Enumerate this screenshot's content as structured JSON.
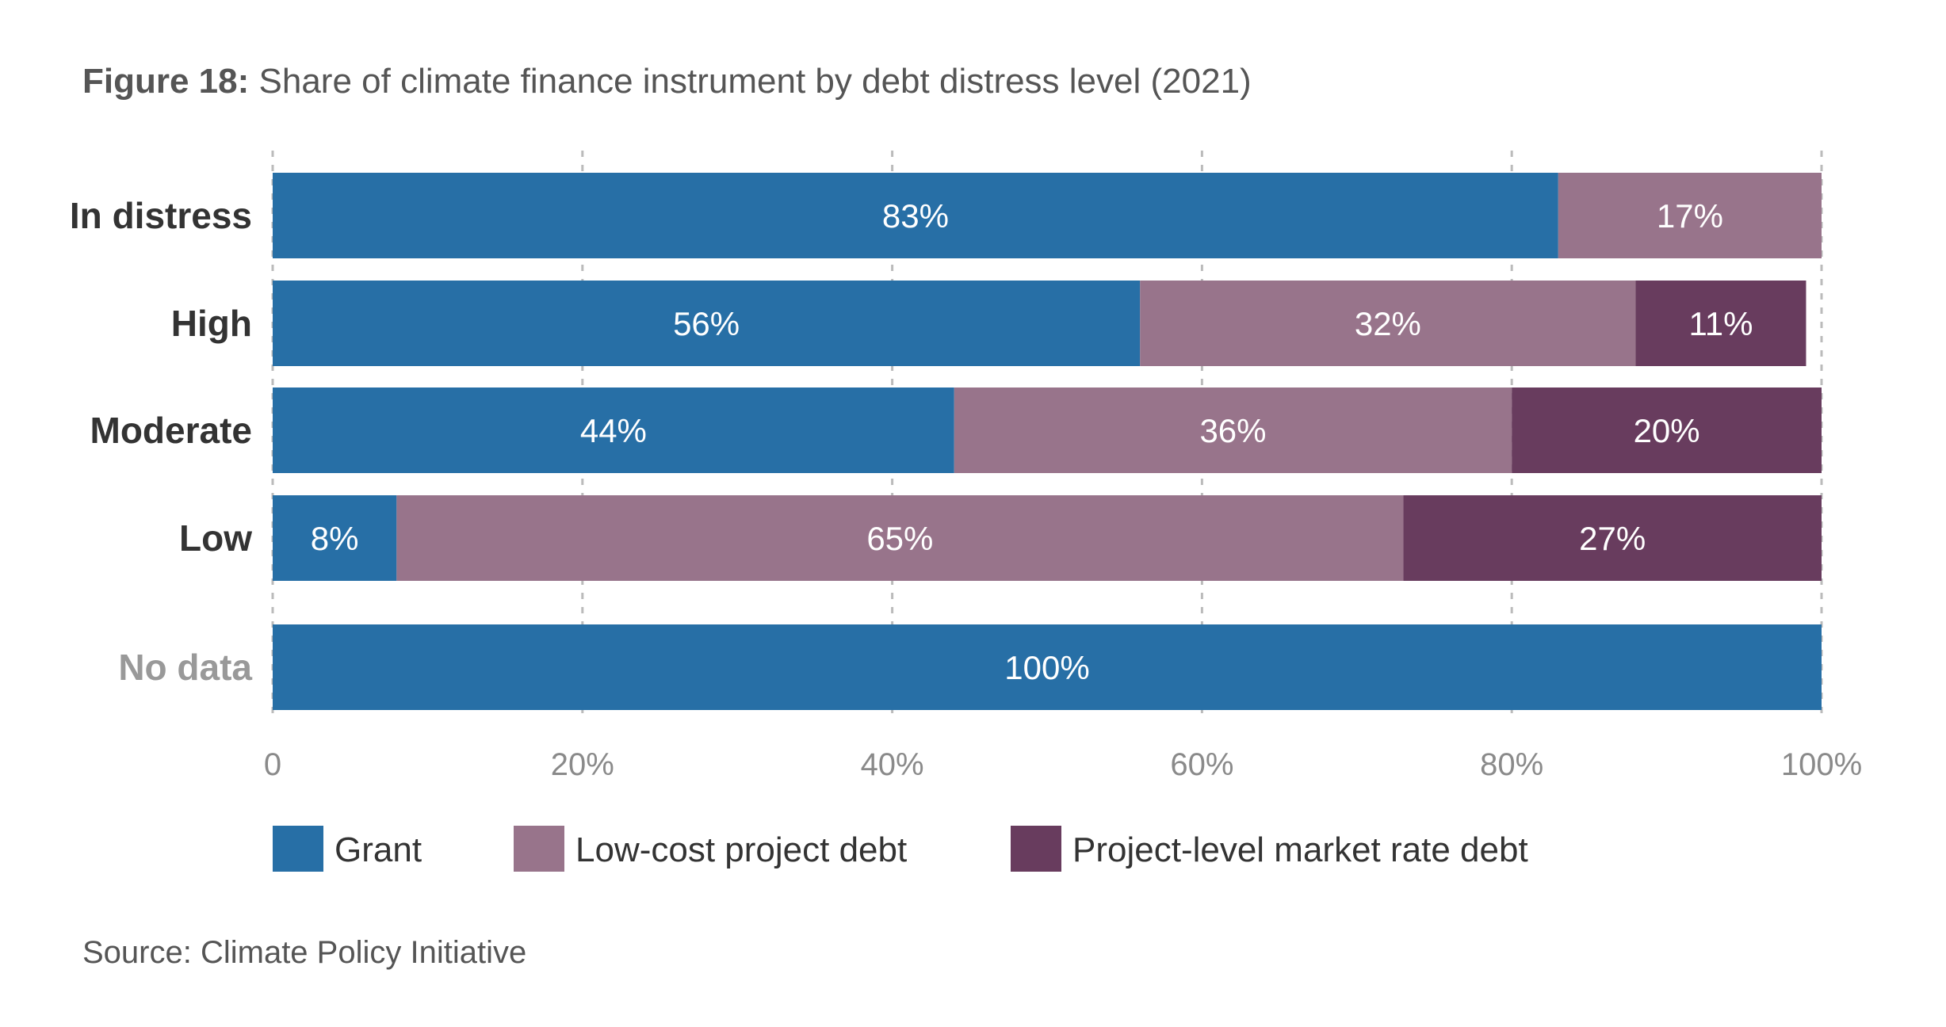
{
  "figure": {
    "prefix": "Figure 18:",
    "title": "Share of climate finance instrument by debt distress level (2021)",
    "source": "Source: Climate Policy Initiative"
  },
  "chart_data": {
    "type": "bar",
    "orientation": "horizontal",
    "stacked": true,
    "categories": [
      "In distress",
      "High",
      "Moderate",
      "Low",
      "No data"
    ],
    "category_colors": [
      "#333333",
      "#333333",
      "#333333",
      "#333333",
      "#999999"
    ],
    "series": [
      {
        "name": "Grant",
        "color": "#276fa6",
        "values": [
          83,
          56,
          44,
          8,
          100
        ],
        "labels": [
          "83%",
          "56%",
          "44%",
          "8%",
          "100%"
        ]
      },
      {
        "name": "Low-cost project debt",
        "color": "#98748b",
        "values": [
          17,
          32,
          36,
          65,
          0
        ],
        "labels": [
          "17%",
          "32%",
          "36%",
          "65%",
          ""
        ]
      },
      {
        "name": "Project-level market rate debt",
        "color": "#683c5e",
        "values": [
          0,
          11,
          20,
          27,
          0
        ],
        "labels": [
          "",
          "11%",
          "20%",
          "27%",
          ""
        ]
      }
    ],
    "xlim": [
      0,
      100
    ],
    "xticks": [
      0,
      20,
      40,
      60,
      80,
      100
    ],
    "xtick_labels": [
      "0",
      "20%",
      "40%",
      "60%",
      "80%",
      "100%"
    ],
    "grid": "vertical dashed",
    "legend_position": "bottom"
  }
}
